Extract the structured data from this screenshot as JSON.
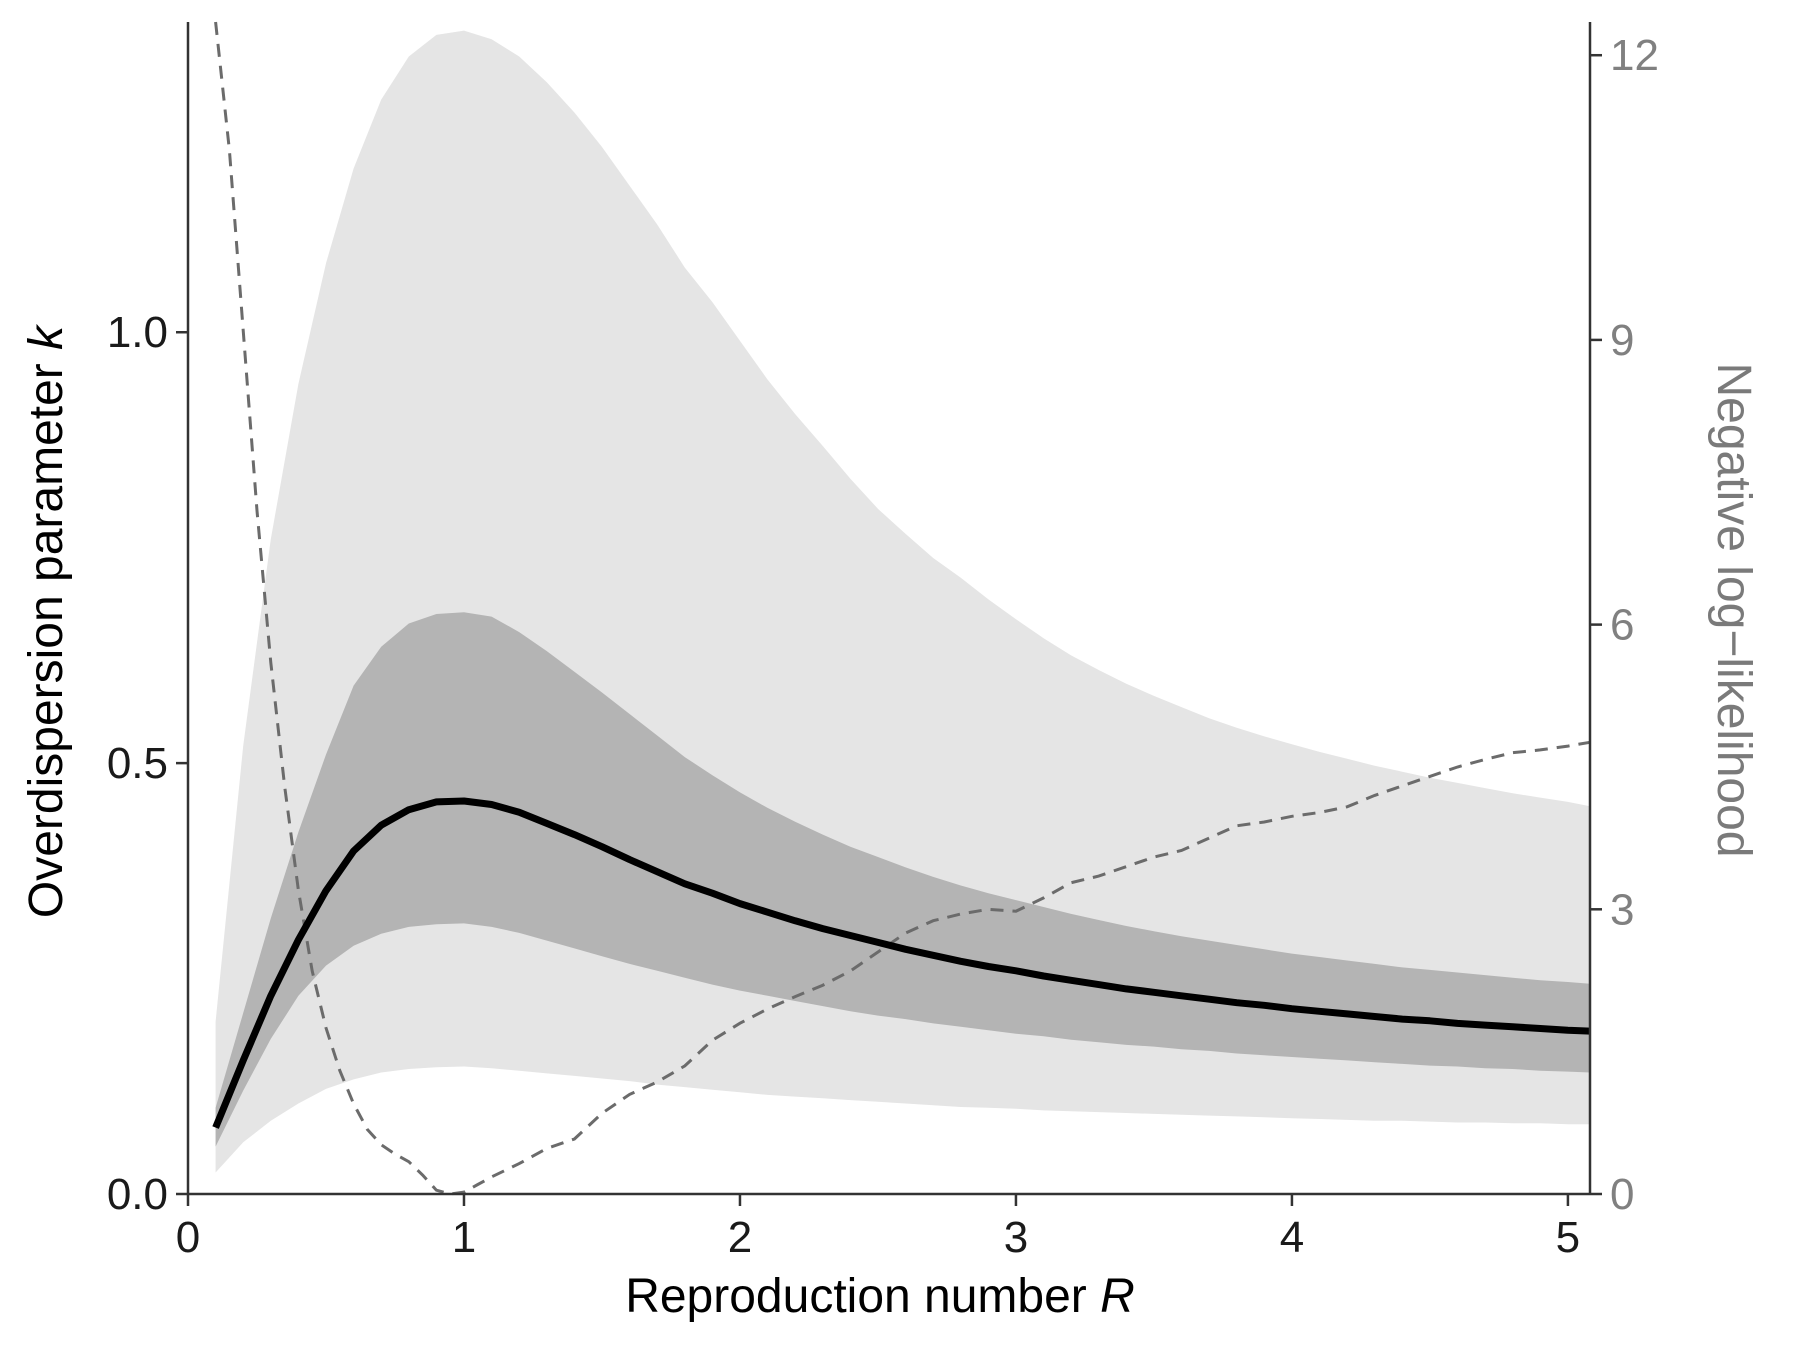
{
  "chart_data": {
    "type": "line",
    "title": "",
    "xlabel": "Reproduction number R",
    "xlabel_parts": {
      "text": "Reproduction number ",
      "var": "R"
    },
    "ylabel": "Overdispersion parameter k",
    "ylabel_parts": {
      "text": "Overdispersion parameter ",
      "var": "k"
    },
    "y2label": "Negative log−likelihood",
    "xlim": [
      0,
      5.08
    ],
    "ylim": [
      0,
      1.36
    ],
    "y2lim": [
      0,
      12.35
    ],
    "xticks": [
      "0",
      "1",
      "2",
      "3",
      "4",
      "5"
    ],
    "yticks": [
      "0.0",
      "0.5",
      "1.0"
    ],
    "y2ticks": [
      "0",
      "3",
      "6",
      "9",
      "12"
    ],
    "grid": false,
    "legend": "none",
    "colors": {
      "estimate": "#000000",
      "inner_band": "#b4b4b4",
      "outer_band": "#e5e5e5",
      "nll": "#6b6b6b",
      "axis": "#333333"
    },
    "x": [
      0.1,
      0.2,
      0.3,
      0.4,
      0.5,
      0.6,
      0.7,
      0.8,
      0.9,
      1.0,
      1.1,
      1.2,
      1.3,
      1.4,
      1.5,
      1.6,
      1.7,
      1.8,
      1.9,
      2.0,
      2.1,
      2.2,
      2.3,
      2.4,
      2.5,
      2.6,
      2.7,
      2.8,
      2.9,
      3.0,
      3.1,
      3.2,
      3.3,
      3.4,
      3.5,
      3.6,
      3.7,
      3.8,
      3.9,
      4.0,
      4.1,
      4.2,
      4.3,
      4.4,
      4.5,
      4.6,
      4.7,
      4.8,
      4.9,
      5.0,
      5.08
    ],
    "series": [
      {
        "role": "estimate",
        "axis": "left",
        "style": "solid",
        "values": [
          0.077,
          0.155,
          0.23,
          0.295,
          0.352,
          0.398,
          0.428,
          0.446,
          0.455,
          0.456,
          0.452,
          0.443,
          0.43,
          0.417,
          0.403,
          0.388,
          0.374,
          0.36,
          0.349,
          0.337,
          0.327,
          0.317,
          0.308,
          0.3,
          0.292,
          0.284,
          0.277,
          0.27,
          0.264,
          0.259,
          0.253,
          0.248,
          0.243,
          0.238,
          0.234,
          0.23,
          0.226,
          0.222,
          0.219,
          0.215,
          0.212,
          0.209,
          0.206,
          0.203,
          0.201,
          0.198,
          0.196,
          0.194,
          0.192,
          0.19,
          0.189
        ]
      },
      {
        "role": "inner_band",
        "axis": "left",
        "lower": [
          0.055,
          0.12,
          0.18,
          0.23,
          0.265,
          0.288,
          0.302,
          0.31,
          0.313,
          0.314,
          0.31,
          0.303,
          0.294,
          0.285,
          0.276,
          0.267,
          0.259,
          0.251,
          0.243,
          0.236,
          0.23,
          0.224,
          0.218,
          0.212,
          0.207,
          0.203,
          0.198,
          0.194,
          0.19,
          0.186,
          0.183,
          0.179,
          0.176,
          0.173,
          0.171,
          0.168,
          0.166,
          0.163,
          0.161,
          0.159,
          0.157,
          0.155,
          0.153,
          0.151,
          0.149,
          0.148,
          0.146,
          0.145,
          0.143,
          0.142,
          0.141
        ],
        "upper": [
          0.1,
          0.21,
          0.32,
          0.42,
          0.51,
          0.59,
          0.635,
          0.662,
          0.673,
          0.675,
          0.67,
          0.652,
          0.63,
          0.606,
          0.582,
          0.557,
          0.532,
          0.507,
          0.486,
          0.466,
          0.448,
          0.432,
          0.417,
          0.403,
          0.391,
          0.379,
          0.368,
          0.358,
          0.349,
          0.341,
          0.333,
          0.325,
          0.318,
          0.311,
          0.305,
          0.299,
          0.294,
          0.289,
          0.284,
          0.279,
          0.275,
          0.271,
          0.267,
          0.263,
          0.26,
          0.257,
          0.254,
          0.251,
          0.248,
          0.246,
          0.244
        ]
      },
      {
        "role": "outer_band",
        "axis": "left",
        "lower": [
          0.025,
          0.06,
          0.085,
          0.105,
          0.122,
          0.133,
          0.141,
          0.145,
          0.147,
          0.148,
          0.146,
          0.143,
          0.14,
          0.137,
          0.134,
          0.131,
          0.127,
          0.124,
          0.121,
          0.118,
          0.115,
          0.113,
          0.111,
          0.109,
          0.107,
          0.105,
          0.103,
          0.101,
          0.1,
          0.099,
          0.097,
          0.096,
          0.095,
          0.094,
          0.093,
          0.092,
          0.091,
          0.09,
          0.089,
          0.088,
          0.087,
          0.086,
          0.085,
          0.085,
          0.084,
          0.083,
          0.083,
          0.082,
          0.082,
          0.081,
          0.081
        ],
        "upper": [
          0.2,
          0.52,
          0.76,
          0.94,
          1.08,
          1.19,
          1.27,
          1.32,
          1.345,
          1.35,
          1.34,
          1.32,
          1.29,
          1.255,
          1.215,
          1.17,
          1.125,
          1.075,
          1.035,
          0.99,
          0.945,
          0.905,
          0.868,
          0.83,
          0.795,
          0.766,
          0.738,
          0.715,
          0.69,
          0.667,
          0.645,
          0.625,
          0.608,
          0.592,
          0.578,
          0.565,
          0.552,
          0.541,
          0.531,
          0.522,
          0.513,
          0.505,
          0.497,
          0.49,
          0.483,
          0.477,
          0.471,
          0.465,
          0.46,
          0.455,
          0.45
        ]
      },
      {
        "role": "nll",
        "axis": "right",
        "style": "dashed",
        "x": [
          0.1,
          0.15,
          0.2,
          0.25,
          0.3,
          0.35,
          0.4,
          0.45,
          0.5,
          0.55,
          0.6,
          0.65,
          0.7,
          0.75,
          0.8,
          0.85,
          0.9,
          0.95,
          1.0,
          1.05,
          1.1,
          1.2,
          1.3,
          1.4,
          1.5,
          1.6,
          1.7,
          1.8,
          1.9,
          2.0,
          2.1,
          2.2,
          2.3,
          2.4,
          2.5,
          2.6,
          2.7,
          2.8,
          2.9,
          3.0,
          3.1,
          3.2,
          3.3,
          3.4,
          3.5,
          3.6,
          3.7,
          3.8,
          3.9,
          4.0,
          4.1,
          4.2,
          4.3,
          4.4,
          4.5,
          4.6,
          4.7,
          4.8,
          4.9,
          5.0,
          5.08
        ],
        "values": [
          12.5,
          11.0,
          9.1,
          7.2,
          5.6,
          4.3,
          3.2,
          2.35,
          1.75,
          1.3,
          0.95,
          0.68,
          0.52,
          0.42,
          0.34,
          0.2,
          0.04,
          0.0,
          0.02,
          0.1,
          0.18,
          0.32,
          0.48,
          0.58,
          0.85,
          1.05,
          1.18,
          1.35,
          1.62,
          1.8,
          1.95,
          2.08,
          2.2,
          2.35,
          2.55,
          2.75,
          2.88,
          2.95,
          3.0,
          2.98,
          3.12,
          3.28,
          3.35,
          3.45,
          3.55,
          3.62,
          3.75,
          3.88,
          3.92,
          3.98,
          4.02,
          4.08,
          4.2,
          4.3,
          4.4,
          4.5,
          4.58,
          4.65,
          4.68,
          4.72,
          4.76
        ]
      }
    ]
  }
}
